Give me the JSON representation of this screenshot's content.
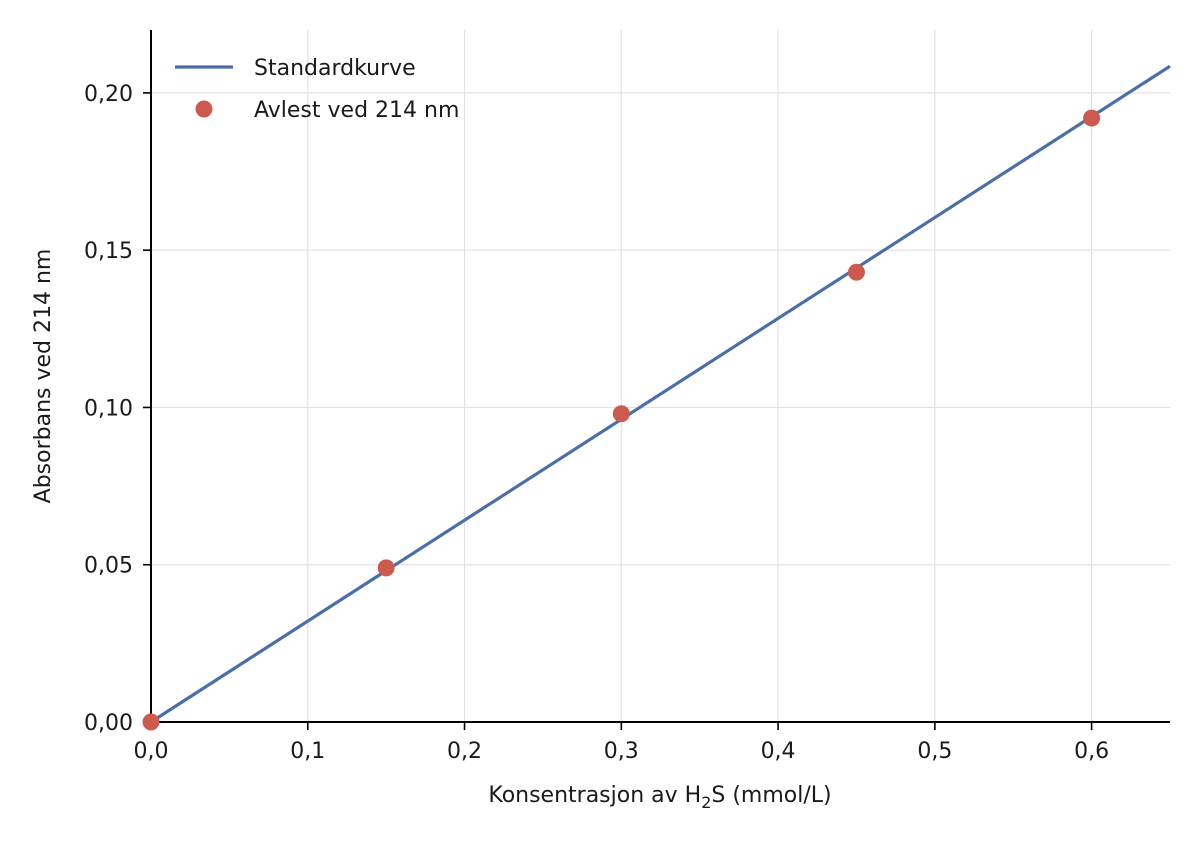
{
  "chart_data": {
    "type": "line",
    "xlabel": {
      "before": "Konsentrasjon av H",
      "subscript": "2",
      "after": "S (mmol/L)"
    },
    "ylabel": "Absorbans ved 214 nm",
    "xlim": [
      0,
      0.65
    ],
    "ylim": [
      0,
      0.22
    ],
    "x_ticks": [
      0.0,
      0.1,
      0.2,
      0.3,
      0.4,
      0.5,
      0.6
    ],
    "x_tick_labels": [
      "0,0",
      "0,1",
      "0,2",
      "0,3",
      "0,4",
      "0,5",
      "0,6"
    ],
    "y_ticks": [
      0.0,
      0.05,
      0.1,
      0.15,
      0.2
    ],
    "y_tick_labels": [
      "0,00",
      "0,05",
      "0,10",
      "0,15",
      "0,20"
    ],
    "grid": true,
    "legend_position": "top-left",
    "series": [
      {
        "name": "Standardkurve",
        "kind": "line",
        "color": "#4a6fa8",
        "x": [
          0.0,
          0.65
        ],
        "y": [
          0.0,
          0.2085
        ]
      },
      {
        "name": "Avlest ved 214 nm",
        "kind": "scatter",
        "color": "#cd5a4e",
        "x": [
          0.0,
          0.15,
          0.3,
          0.45,
          0.6
        ],
        "y": [
          0.0,
          0.049,
          0.098,
          0.143,
          0.192
        ]
      }
    ]
  }
}
